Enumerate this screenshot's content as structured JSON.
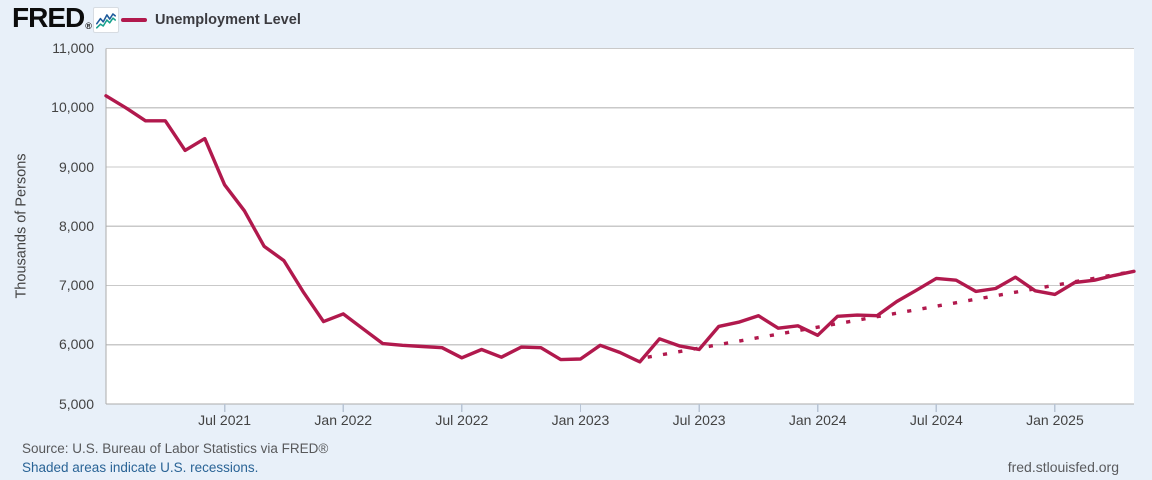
{
  "header": {
    "logo_text": "FRED",
    "logo_reg": "®",
    "chart_icon": "fred-sparkline-icon"
  },
  "legend": {
    "series_label": "Unemployment Level"
  },
  "y_axis": {
    "title": "Thousands of Persons",
    "ticks": [
      {
        "value": 11000,
        "label": "11,000"
      },
      {
        "value": 10000,
        "label": "10,000"
      },
      {
        "value": 9000,
        "label": "9,000"
      },
      {
        "value": 8000,
        "label": "8,000"
      },
      {
        "value": 7000,
        "label": "7,000"
      },
      {
        "value": 6000,
        "label": "6,000"
      },
      {
        "value": 5000,
        "label": "5,000"
      }
    ]
  },
  "x_axis": {
    "ticks": [
      {
        "month_index": 6,
        "label": "Jul 2021"
      },
      {
        "month_index": 12,
        "label": "Jan 2022"
      },
      {
        "month_index": 18,
        "label": "Jul 2022"
      },
      {
        "month_index": 24,
        "label": "Jan 2023"
      },
      {
        "month_index": 30,
        "label": "Jul 2023"
      },
      {
        "month_index": 36,
        "label": "Jan 2024"
      },
      {
        "month_index": 42,
        "label": "Jul 2024"
      },
      {
        "month_index": 48,
        "label": "Jan 2025"
      }
    ]
  },
  "footer": {
    "source_line": "Source: U.S. Bureau of Labor Statistics via FRED®",
    "recession_note": "Shaded areas indicate U.S. recessions.",
    "site_url": "fred.stlouisfed.org"
  },
  "colors": {
    "series": "#b1194d",
    "background": "#e8f0f9",
    "plot_background": "#ffffff",
    "gridline": "#c9c9c9",
    "axis_line": "#ababab",
    "tick_mark": "#b8c4d4",
    "text_dark": "#434343",
    "text_gray": "#58595b",
    "link_blue": "#2a6496",
    "logo_black": "#0c0c0c",
    "icon_blue": "#1e5a9b",
    "icon_teal": "#16a08c"
  },
  "chart_data": {
    "type": "line",
    "title": "Unemployment Level",
    "ylabel": "Thousands of Persons",
    "ylim": [
      5000,
      11000
    ],
    "grid": "horizontal",
    "legend_position": "top-left",
    "x_months": [
      "2021-01",
      "2021-02",
      "2021-03",
      "2021-04",
      "2021-05",
      "2021-06",
      "2021-07",
      "2021-08",
      "2021-09",
      "2021-10",
      "2021-11",
      "2021-12",
      "2022-01",
      "2022-02",
      "2022-03",
      "2022-04",
      "2022-05",
      "2022-06",
      "2022-07",
      "2022-08",
      "2022-09",
      "2022-10",
      "2022-11",
      "2022-12",
      "2023-01",
      "2023-02",
      "2023-03",
      "2023-04",
      "2023-05",
      "2023-06",
      "2023-07",
      "2023-08",
      "2023-09",
      "2023-10",
      "2023-11",
      "2023-12",
      "2024-01",
      "2024-02",
      "2024-03",
      "2024-04",
      "2024-05",
      "2024-06",
      "2024-07",
      "2024-08",
      "2024-09",
      "2024-10",
      "2024-11",
      "2024-12",
      "2025-01",
      "2025-02",
      "2025-03",
      "2025-04",
      "2025-05"
    ],
    "series": [
      {
        "name": "Unemployment Level",
        "style": "solid",
        "values": [
          10202,
          10000,
          9780,
          9780,
          9280,
          9480,
          8700,
          8260,
          7660,
          7420,
          6880,
          6390,
          6520,
          6270,
          6020,
          5990,
          5970,
          5950,
          5780,
          5920,
          5790,
          5960,
          5950,
          5750,
          5760,
          5990,
          5870,
          5710,
          6100,
          5980,
          5920,
          6310,
          6380,
          6490,
          6280,
          6320,
          6160,
          6480,
          6500,
          6490,
          6730,
          6920,
          7120,
          7090,
          6900,
          6950,
          7140,
          6910,
          6850,
          7050,
          7090,
          7170,
          7240
        ]
      },
      {
        "name": "Linear trend (dotted)",
        "style": "dotted",
        "start_month_index": 27.4,
        "start_value": 5790,
        "end_month_index": 52,
        "end_value": 7240
      }
    ]
  }
}
